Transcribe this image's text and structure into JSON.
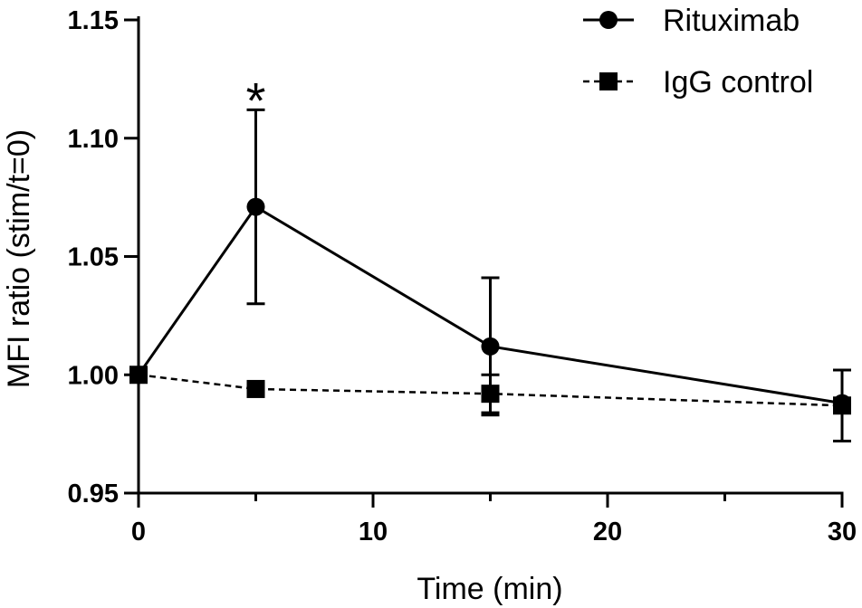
{
  "chart_data": {
    "type": "line",
    "title": "",
    "xlabel": "Time (min)",
    "ylabel": "MFI ratio (stim/t=0)",
    "xlim": [
      0,
      30
    ],
    "ylim": [
      0.95,
      1.15
    ],
    "x_ticks": [
      {
        "value": 0,
        "label": "0"
      },
      {
        "value": 10,
        "label": "10"
      },
      {
        "value": 20,
        "label": "20"
      },
      {
        "value": 30,
        "label": "30"
      }
    ],
    "x_minor_ticks": [
      5,
      15,
      25
    ],
    "y_ticks": [
      {
        "value": 0.95,
        "label": "0.95"
      },
      {
        "value": 1.0,
        "label": "1.00"
      },
      {
        "value": 1.05,
        "label": "1.05"
      },
      {
        "value": 1.1,
        "label": "1.10"
      },
      {
        "value": 1.15,
        "label": "1.15"
      }
    ],
    "grid": false,
    "legend_position": "top-right",
    "series": [
      {
        "name": "Rituximab",
        "marker": "circle",
        "line_style": "solid",
        "color": "#000000",
        "points": [
          {
            "x": 0,
            "y": 1.0,
            "err": 0
          },
          {
            "x": 5,
            "y": 1.071,
            "err": 0.041
          },
          {
            "x": 15,
            "y": 1.012,
            "err": 0.029
          },
          {
            "x": 30,
            "y": 0.988,
            "err": 0
          }
        ]
      },
      {
        "name": "IgG control",
        "marker": "square",
        "line_style": "dashed",
        "color": "#000000",
        "points": [
          {
            "x": 0,
            "y": 1.0,
            "err": 0
          },
          {
            "x": 5,
            "y": 0.994,
            "err": 0
          },
          {
            "x": 15,
            "y": 0.992,
            "err": 0.008
          },
          {
            "x": 30,
            "y": 0.987,
            "err": 0.015
          }
        ]
      }
    ],
    "annotations": [
      {
        "text": "*",
        "x": 5,
        "y": 1.123
      }
    ]
  }
}
